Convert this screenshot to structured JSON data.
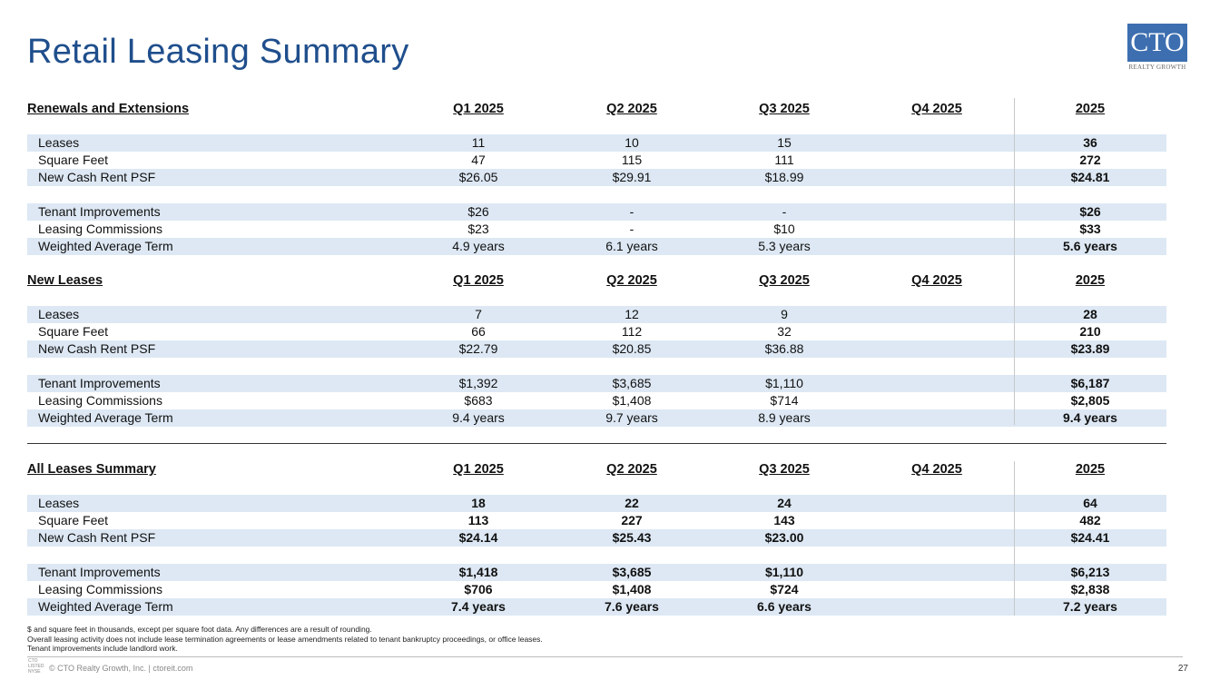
{
  "title": "Retail Leasing Summary",
  "logo": {
    "text": "CTO",
    "sub": "REALTY GROWTH"
  },
  "columns": [
    "Q1 2025",
    "Q2 2025",
    "Q3 2025",
    "Q4 2025",
    "2025"
  ],
  "sections": [
    {
      "title": "Renewals and Extensions",
      "bold_values": false,
      "rows": [
        {
          "label": "Leases",
          "values": [
            "11",
            "10",
            "15",
            "",
            "36"
          ]
        },
        {
          "label": "Square Feet",
          "values": [
            "47",
            "115",
            "111",
            "",
            "272"
          ]
        },
        {
          "label": "New Cash Rent PSF",
          "values": [
            "$26.05",
            "$29.91",
            "$18.99",
            "",
            "$24.81"
          ]
        },
        {
          "label": "Tenant Improvements",
          "values": [
            "$26",
            "-",
            "-",
            "",
            "$26"
          ]
        },
        {
          "label": "Leasing Commissions",
          "values": [
            "$23",
            "-",
            "$10",
            "",
            "$33"
          ]
        },
        {
          "label": "Weighted Average Term",
          "values": [
            "4.9 years",
            "6.1 years",
            "5.3 years",
            "",
            "5.6 years"
          ]
        }
      ]
    },
    {
      "title": "New Leases",
      "bold_values": false,
      "rows": [
        {
          "label": "Leases",
          "values": [
            "7",
            "12",
            "9",
            "",
            "28"
          ]
        },
        {
          "label": "Square Feet",
          "values": [
            "66",
            "112",
            "32",
            "",
            "210"
          ]
        },
        {
          "label": "New Cash Rent PSF",
          "values": [
            "$22.79",
            "$20.85",
            "$36.88",
            "",
            "$23.89"
          ]
        },
        {
          "label": "Tenant Improvements",
          "values": [
            "$1,392",
            "$3,685",
            "$1,110",
            "",
            "$6,187"
          ]
        },
        {
          "label": "Leasing Commissions",
          "values": [
            "$683",
            "$1,408",
            "$714",
            "",
            "$2,805"
          ]
        },
        {
          "label": "Weighted Average Term",
          "values": [
            "9.4 years",
            "9.7 years",
            "8.9 years",
            "",
            "9.4 years"
          ]
        }
      ]
    },
    {
      "title": "All Leases Summary",
      "bold_values": true,
      "rows": [
        {
          "label": "Leases",
          "values": [
            "18",
            "22",
            "24",
            "",
            "64"
          ]
        },
        {
          "label": "Square Feet",
          "values": [
            "113",
            "227",
            "143",
            "",
            "482"
          ]
        },
        {
          "label": "New Cash Rent PSF",
          "values": [
            "$24.14",
            "$25.43",
            "$23.00",
            "",
            "$24.41"
          ]
        },
        {
          "label": "Tenant Improvements",
          "values": [
            "$1,418",
            "$3,685",
            "$1,110",
            "",
            "$6,213"
          ]
        },
        {
          "label": "Leasing Commissions",
          "values": [
            "$706",
            "$1,408",
            "$724",
            "",
            "$2,838"
          ]
        },
        {
          "label": "Weighted Average Term",
          "values": [
            "7.4 years",
            "7.6 years",
            "6.6 years",
            "",
            "7.2 years"
          ]
        }
      ]
    }
  ],
  "notes": [
    "$ and square feet in thousands, except per square foot data. Any differences are a result of rounding.",
    "Overall leasing activity does not include lease termination agreements or lease amendments related to tenant bankruptcy proceedings, or office leases.",
    "Tenant improvements include landlord work."
  ],
  "footer": {
    "exchange": "CTO LISTED NYSE",
    "copyright": "© CTO Realty Growth, Inc. | ctoreit.com",
    "page": "27"
  },
  "colors": {
    "title": "#1f4e8c",
    "stripe": "#dde8f4",
    "logo": "#3d6fb0"
  }
}
